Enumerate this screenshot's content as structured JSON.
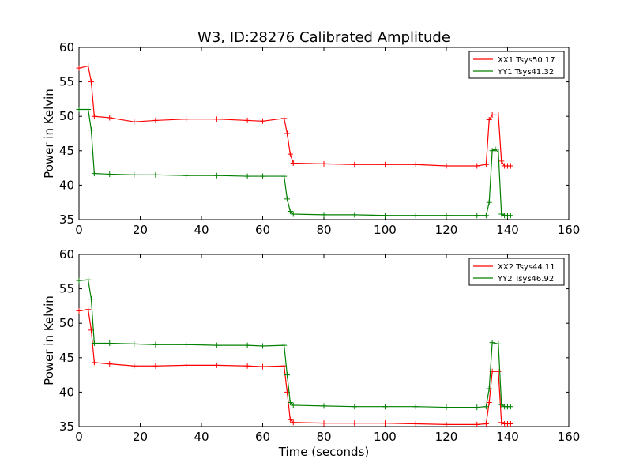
{
  "title": "W3, ID:28276 Calibrated Amplitude",
  "xlabel": "Time (seconds)",
  "chart_data": [
    {
      "type": "line",
      "title": "W3, ID:28276 Calibrated Amplitude",
      "ylabel": "Power in Kelvin",
      "xlabel": "",
      "xlim": [
        0,
        160
      ],
      "ylim": [
        35,
        60
      ],
      "xticks": [
        0,
        20,
        40,
        60,
        80,
        100,
        120,
        140,
        160
      ],
      "yticks": [
        35,
        40,
        45,
        50,
        55,
        60
      ],
      "legend_position": "top-right",
      "marker": "plus",
      "series": [
        {
          "name": "XX1 Tsys50.17",
          "color": "#ff0000",
          "x": [
            0,
            3,
            4,
            5,
            10,
            18,
            25,
            35,
            45,
            55,
            60,
            67,
            68,
            69,
            70,
            80,
            90,
            100,
            110,
            120,
            130,
            133,
            134,
            135,
            137,
            138,
            139,
            140,
            141
          ],
          "y": [
            57.0,
            57.3,
            55.0,
            50.0,
            49.8,
            49.2,
            49.4,
            49.6,
            49.6,
            49.4,
            49.3,
            49.7,
            47.5,
            44.5,
            43.2,
            43.1,
            43.0,
            43.0,
            43.0,
            42.8,
            42.8,
            43.0,
            49.5,
            50.2,
            50.2,
            43.5,
            42.8,
            42.8,
            42.8
          ]
        },
        {
          "name": "YY1 Tsys41.32",
          "color": "#008000",
          "x": [
            0,
            3,
            4,
            5,
            10,
            18,
            25,
            35,
            45,
            55,
            60,
            67,
            68,
            69,
            70,
            80,
            90,
            100,
            110,
            120,
            130,
            133,
            134,
            135,
            136,
            137,
            138,
            139,
            140,
            141
          ],
          "y": [
            51.0,
            51.0,
            48.0,
            41.7,
            41.6,
            41.5,
            41.5,
            41.4,
            41.4,
            41.3,
            41.3,
            41.3,
            38.0,
            36.2,
            35.8,
            35.7,
            35.7,
            35.6,
            35.6,
            35.6,
            35.6,
            35.6,
            37.5,
            45.0,
            45.2,
            44.8,
            35.8,
            35.6,
            35.6,
            35.6
          ]
        }
      ]
    },
    {
      "type": "line",
      "title": "",
      "ylabel": "Power in Kelvin",
      "xlabel": "Time (seconds)",
      "xlim": [
        0,
        160
      ],
      "ylim": [
        35,
        60
      ],
      "xticks": [
        0,
        20,
        40,
        60,
        80,
        100,
        120,
        140,
        160
      ],
      "yticks": [
        35,
        40,
        45,
        50,
        55,
        60
      ],
      "legend_position": "top-right",
      "marker": "plus",
      "series": [
        {
          "name": "XX2 Tsys44.11",
          "color": "#ff0000",
          "x": [
            0,
            3,
            4,
            5,
            10,
            18,
            25,
            35,
            45,
            55,
            60,
            67,
            68,
            69,
            70,
            80,
            90,
            100,
            110,
            120,
            130,
            133,
            134,
            135,
            137,
            138,
            139,
            140,
            141
          ],
          "y": [
            51.8,
            52.0,
            49.0,
            44.3,
            44.1,
            43.8,
            43.8,
            43.9,
            43.9,
            43.8,
            43.7,
            43.8,
            40.0,
            36.0,
            35.6,
            35.5,
            35.5,
            35.5,
            35.4,
            35.3,
            35.3,
            35.4,
            38.5,
            43.0,
            43.0,
            35.6,
            35.4,
            35.4,
            35.4
          ]
        },
        {
          "name": "YY2 Tsys46.92",
          "color": "#008000",
          "x": [
            0,
            3,
            4,
            5,
            10,
            18,
            25,
            35,
            45,
            55,
            60,
            67,
            68,
            69,
            70,
            80,
            90,
            100,
            110,
            120,
            130,
            133,
            134,
            135,
            137,
            138,
            139,
            140,
            141
          ],
          "y": [
            56.2,
            56.3,
            53.5,
            47.1,
            47.1,
            47.0,
            46.9,
            46.9,
            46.8,
            46.8,
            46.7,
            46.8,
            42.5,
            38.5,
            38.1,
            38.0,
            37.9,
            37.9,
            37.9,
            37.8,
            37.8,
            37.9,
            40.5,
            47.2,
            47.0,
            38.2,
            37.9,
            37.9,
            37.9
          ]
        }
      ]
    }
  ]
}
